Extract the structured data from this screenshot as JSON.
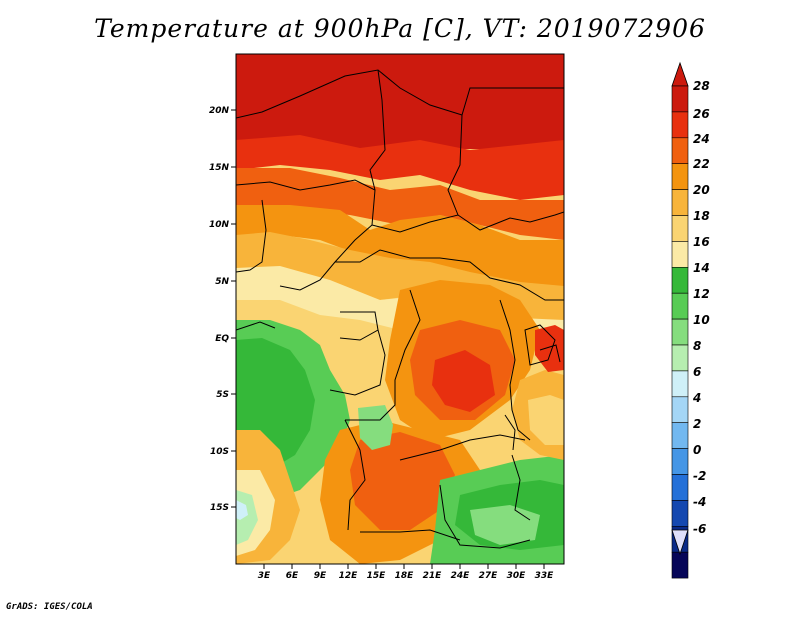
{
  "title": "Temperature at 900hPa [C], VT: 2019072906",
  "footer": "GrADS: IGES/COLA",
  "map": {
    "lat_labels": [
      "20N",
      "15N",
      "10N",
      "5N",
      "EQ",
      "5S",
      "10S",
      "15S"
    ],
    "lon_labels": [
      "3E",
      "6E",
      "9E",
      "12E",
      "15E",
      "18E",
      "21E",
      "24E",
      "27E",
      "30E",
      "33E"
    ]
  },
  "colorbar": {
    "labels": [
      "28",
      "26",
      "24",
      "22",
      "20",
      "18",
      "16",
      "14",
      "12",
      "10",
      "8",
      "6",
      "4",
      "2",
      "0",
      "-2",
      "-4",
      "-6"
    ],
    "colors": [
      "#cc1a0e",
      "#e8300f",
      "#f06010",
      "#f49410",
      "#f8b43a",
      "#fad472",
      "#fbeaa6",
      "#35b839",
      "#58cc55",
      "#85dd7e",
      "#b6eeb0",
      "#cff0f8",
      "#a4d6f6",
      "#72b8f0",
      "#4596e6",
      "#2470d8",
      "#1448b0",
      "#0a2a88",
      "#060658"
    ],
    "max_color": "#cc1a0e",
    "min_color": "#e0e0fa"
  }
}
